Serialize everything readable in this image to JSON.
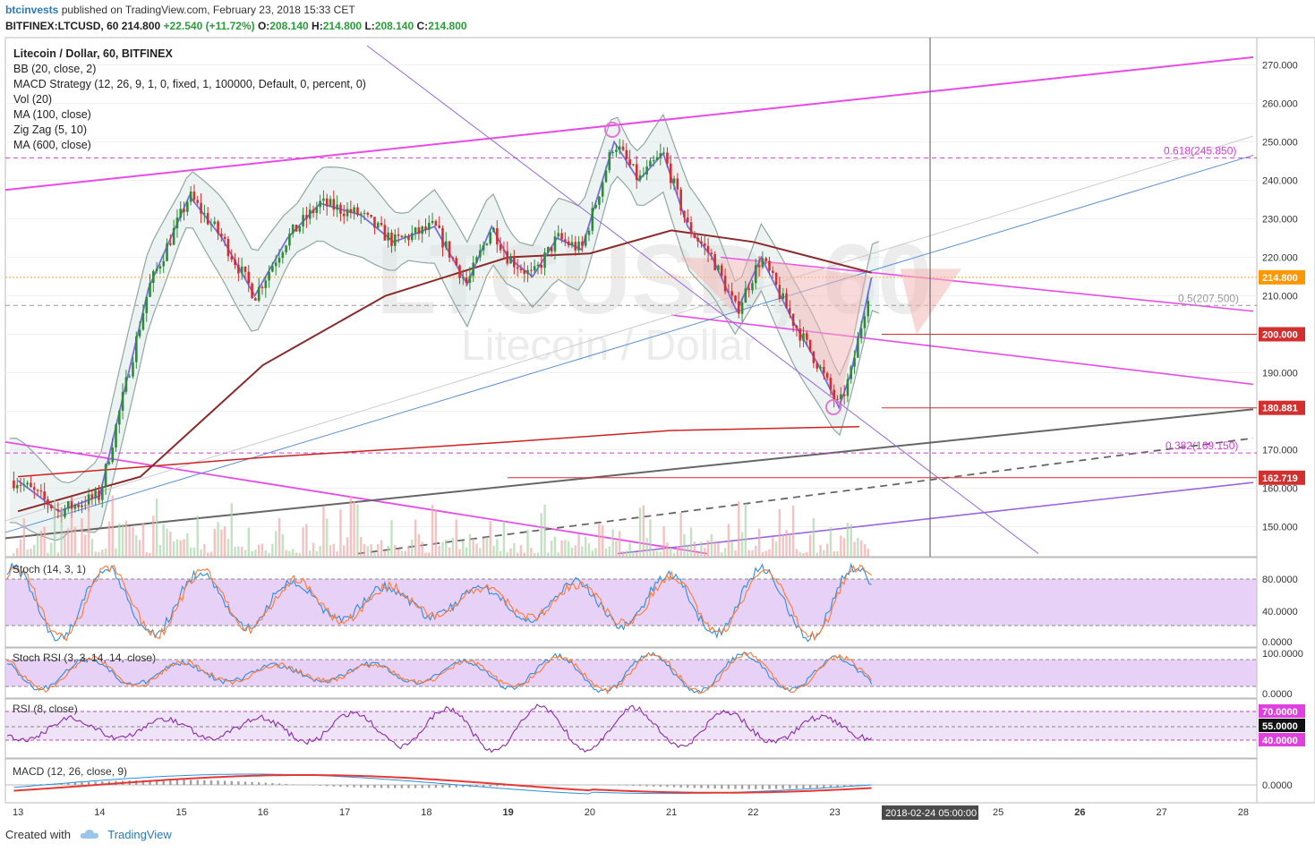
{
  "header": {
    "user": "btcinvests",
    "published": "published on TradingView.com, February 23, 2018 15:33 CET",
    "symbol": "BITFINEX:LTCUSD, 60",
    "last": "214.800",
    "change": "+22.540 (+11.72%)",
    "o_label": "O:",
    "o": "208.140",
    "h_label": "H:",
    "h": "214.800",
    "l_label": "L:",
    "l": "208.140",
    "c_label": "C:",
    "c": "214.800"
  },
  "legend": [
    "Litecoin / Dollar, 60, BITFINEX",
    "BB (20, close, 2)",
    "MACD Strategy (12, 26, 9, 1, 0, fixed, 1, 100000, Default, 0, percent, 0)",
    "Vol (20)",
    "MA (100, close)",
    "Zig Zag (5, 10)",
    "MA (600, close)"
  ],
  "watermark": {
    "symbol": "LTCUSD, 60",
    "name": "Litecoin / Dollar"
  },
  "fib_labels": {
    "f618": "0.618(245.850)",
    "f5": "0.5(207.500)",
    "f382": "0.382(169.150)"
  },
  "price_badges": {
    "last": "214.800",
    "level200": "200.000",
    "level180": "180.881",
    "level162": "162.719"
  },
  "panels": {
    "stoch": {
      "title": "Stoch (14, 3, 1)",
      "ticks": [
        "80.0000",
        "40.0000",
        "0.0000"
      ]
    },
    "stochrsi": {
      "title": "Stoch RSI (3, 3, 14, 14, close)",
      "ticks": [
        "100.0000",
        "0.0000"
      ]
    },
    "rsi": {
      "title": "RSI (8, close)",
      "badges": [
        "70.0000",
        "55.0000",
        "40.0000"
      ]
    },
    "macd": {
      "title": "MACD (12, 26, close, 9)",
      "ticks": [
        "0.0000"
      ]
    }
  },
  "crosshair_label": "2018-02-24 05:00:00",
  "footer": {
    "created": "Created with",
    "brand": "TradingView"
  },
  "colors": {
    "up": "#2e8b3a",
    "down": "#d32f2f",
    "magenta": "#e84ce8",
    "purple": "#9966dd",
    "blue": "#5a8fd8",
    "ma100": "#8b2b2b",
    "ma600": "#cc2222",
    "bb": "#8fa8a0"
  },
  "chart_data": {
    "type": "candlestick",
    "symbol": "BITFINEX:LTCUSD",
    "interval": "60",
    "y_axis_ticks": [
      150,
      160,
      170,
      180,
      190,
      200,
      210,
      220,
      230,
      240,
      250,
      260,
      270
    ],
    "ylim": [
      143,
      275
    ],
    "x_axis_labels": [
      "13",
      "14",
      "15",
      "16",
      "17",
      "18",
      "19",
      "20",
      "21",
      "22",
      "23",
      "25",
      "26",
      "27",
      "28"
    ],
    "price_path_day_close": [
      {
        "x": 13.0,
        "y": 162
      },
      {
        "x": 13.5,
        "y": 154
      },
      {
        "x": 14.0,
        "y": 158
      },
      {
        "x": 14.3,
        "y": 185
      },
      {
        "x": 14.6,
        "y": 212
      },
      {
        "x": 15.1,
        "y": 236
      },
      {
        "x": 15.5,
        "y": 225
      },
      {
        "x": 15.9,
        "y": 210
      },
      {
        "x": 16.3,
        "y": 225
      },
      {
        "x": 16.7,
        "y": 234
      },
      {
        "x": 17.2,
        "y": 231
      },
      {
        "x": 17.6,
        "y": 224
      },
      {
        "x": 18.1,
        "y": 228
      },
      {
        "x": 18.5,
        "y": 213
      },
      {
        "x": 18.8,
        "y": 228
      },
      {
        "x": 19.0,
        "y": 220
      },
      {
        "x": 19.3,
        "y": 215
      },
      {
        "x": 19.6,
        "y": 225
      },
      {
        "x": 19.9,
        "y": 222
      },
      {
        "x": 20.3,
        "y": 250
      },
      {
        "x": 20.6,
        "y": 240
      },
      {
        "x": 20.9,
        "y": 247
      },
      {
        "x": 21.2,
        "y": 228
      },
      {
        "x": 21.5,
        "y": 220
      },
      {
        "x": 21.8,
        "y": 206
      },
      {
        "x": 22.1,
        "y": 220
      },
      {
        "x": 22.5,
        "y": 203
      },
      {
        "x": 22.8,
        "y": 192
      },
      {
        "x": 23.05,
        "y": 181
      },
      {
        "x": 23.2,
        "y": 190
      },
      {
        "x": 23.45,
        "y": 214.8
      }
    ],
    "ma100": [
      {
        "x": 13.0,
        "y": 154
      },
      {
        "x": 14.5,
        "y": 163
      },
      {
        "x": 16.0,
        "y": 192
      },
      {
        "x": 17.5,
        "y": 210
      },
      {
        "x": 19.0,
        "y": 220
      },
      {
        "x": 20.0,
        "y": 221
      },
      {
        "x": 21.0,
        "y": 227
      },
      {
        "x": 22.0,
        "y": 224
      },
      {
        "x": 23.45,
        "y": 216
      }
    ],
    "ma600": [
      {
        "x": 13.0,
        "y": 163
      },
      {
        "x": 16.0,
        "y": 168
      },
      {
        "x": 19.0,
        "y": 172
      },
      {
        "x": 21.0,
        "y": 175
      },
      {
        "x": 23.3,
        "y": 176
      }
    ],
    "horizontal_levels": [
      {
        "label": "214.800",
        "y": 214.8
      },
      {
        "label": "200.000",
        "y": 200.0
      },
      {
        "label": "180.881",
        "y": 180.881
      },
      {
        "label": "162.719",
        "y": 162.719
      }
    ],
    "fibonacci": [
      {
        "label": "0.618(245.850)",
        "y": 245.85
      },
      {
        "label": "0.5(207.500)",
        "y": 207.5
      },
      {
        "label": "0.382(169.150)",
        "y": 169.15
      }
    ],
    "crosshair_x": "2018-02-24 05:00:00",
    "rsi_levels": [
      70,
      55,
      40
    ],
    "stoch_levels": [
      80,
      20
    ]
  }
}
